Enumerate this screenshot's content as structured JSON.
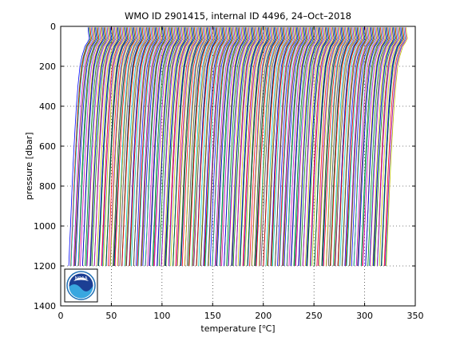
{
  "chart_data": {
    "type": "line",
    "title": "WMO ID 2901415, internal ID 4496, 24–Oct–2018",
    "xlabel_prefix": "temperature [",
    "xlabel_unit": "C]",
    "xlabel_degree": "o",
    "ylabel": "pressure [dbar]",
    "xlim": [
      0,
      350
    ],
    "ylim": [
      0,
      1400
    ],
    "y_reversed": true,
    "grid": true,
    "grid_style": "dotted",
    "x_ticks": [
      0,
      50,
      100,
      150,
      200,
      250,
      300,
      350
    ],
    "y_ticks": [
      0,
      200,
      400,
      600,
      800,
      1000,
      1200,
      1400
    ],
    "x_tick_labels": [
      "0",
      "50",
      "100",
      "150",
      "200",
      "250",
      "300",
      "350"
    ],
    "y_tick_labels": [
      "0",
      "200",
      "400",
      "600",
      "800",
      "1000",
      "1200",
      "1400"
    ],
    "series_description": "Waterfall of temperature profiles, each successive profile offset by about 1.05 °C in x",
    "profile_count": 300,
    "profile_offset_step": 1.05,
    "first_profile_surface_temperature": 27,
    "first_profile_deep_temperature": 8,
    "profile_max_pressure": 1200,
    "reference_profile": {
      "pressure": [
        5,
        20,
        40,
        60,
        80,
        100,
        150,
        200,
        300,
        400,
        500,
        600,
        700,
        800,
        900,
        1000,
        1100,
        1200
      ],
      "temperature": [
        27.0,
        27.2,
        27.6,
        28.3,
        26.5,
        24.0,
        21.0,
        19.0,
        17.0,
        15.5,
        14.3,
        13.2,
        12.2,
        11.3,
        10.5,
        9.7,
        8.8,
        8.0
      ]
    },
    "series_colors": [
      "#0000ff",
      "#008000",
      "#ff0000",
      "#00bfbf",
      "#bf00bf",
      "#bfbf00",
      "#404040"
    ],
    "logo": {
      "label": "NOAA",
      "colors": {
        "outer": "#ffffff",
        "ring": "#1f6fb5",
        "field": "#1c3f94",
        "wave": "#39a7e0",
        "bird": "#ffffff"
      }
    }
  }
}
